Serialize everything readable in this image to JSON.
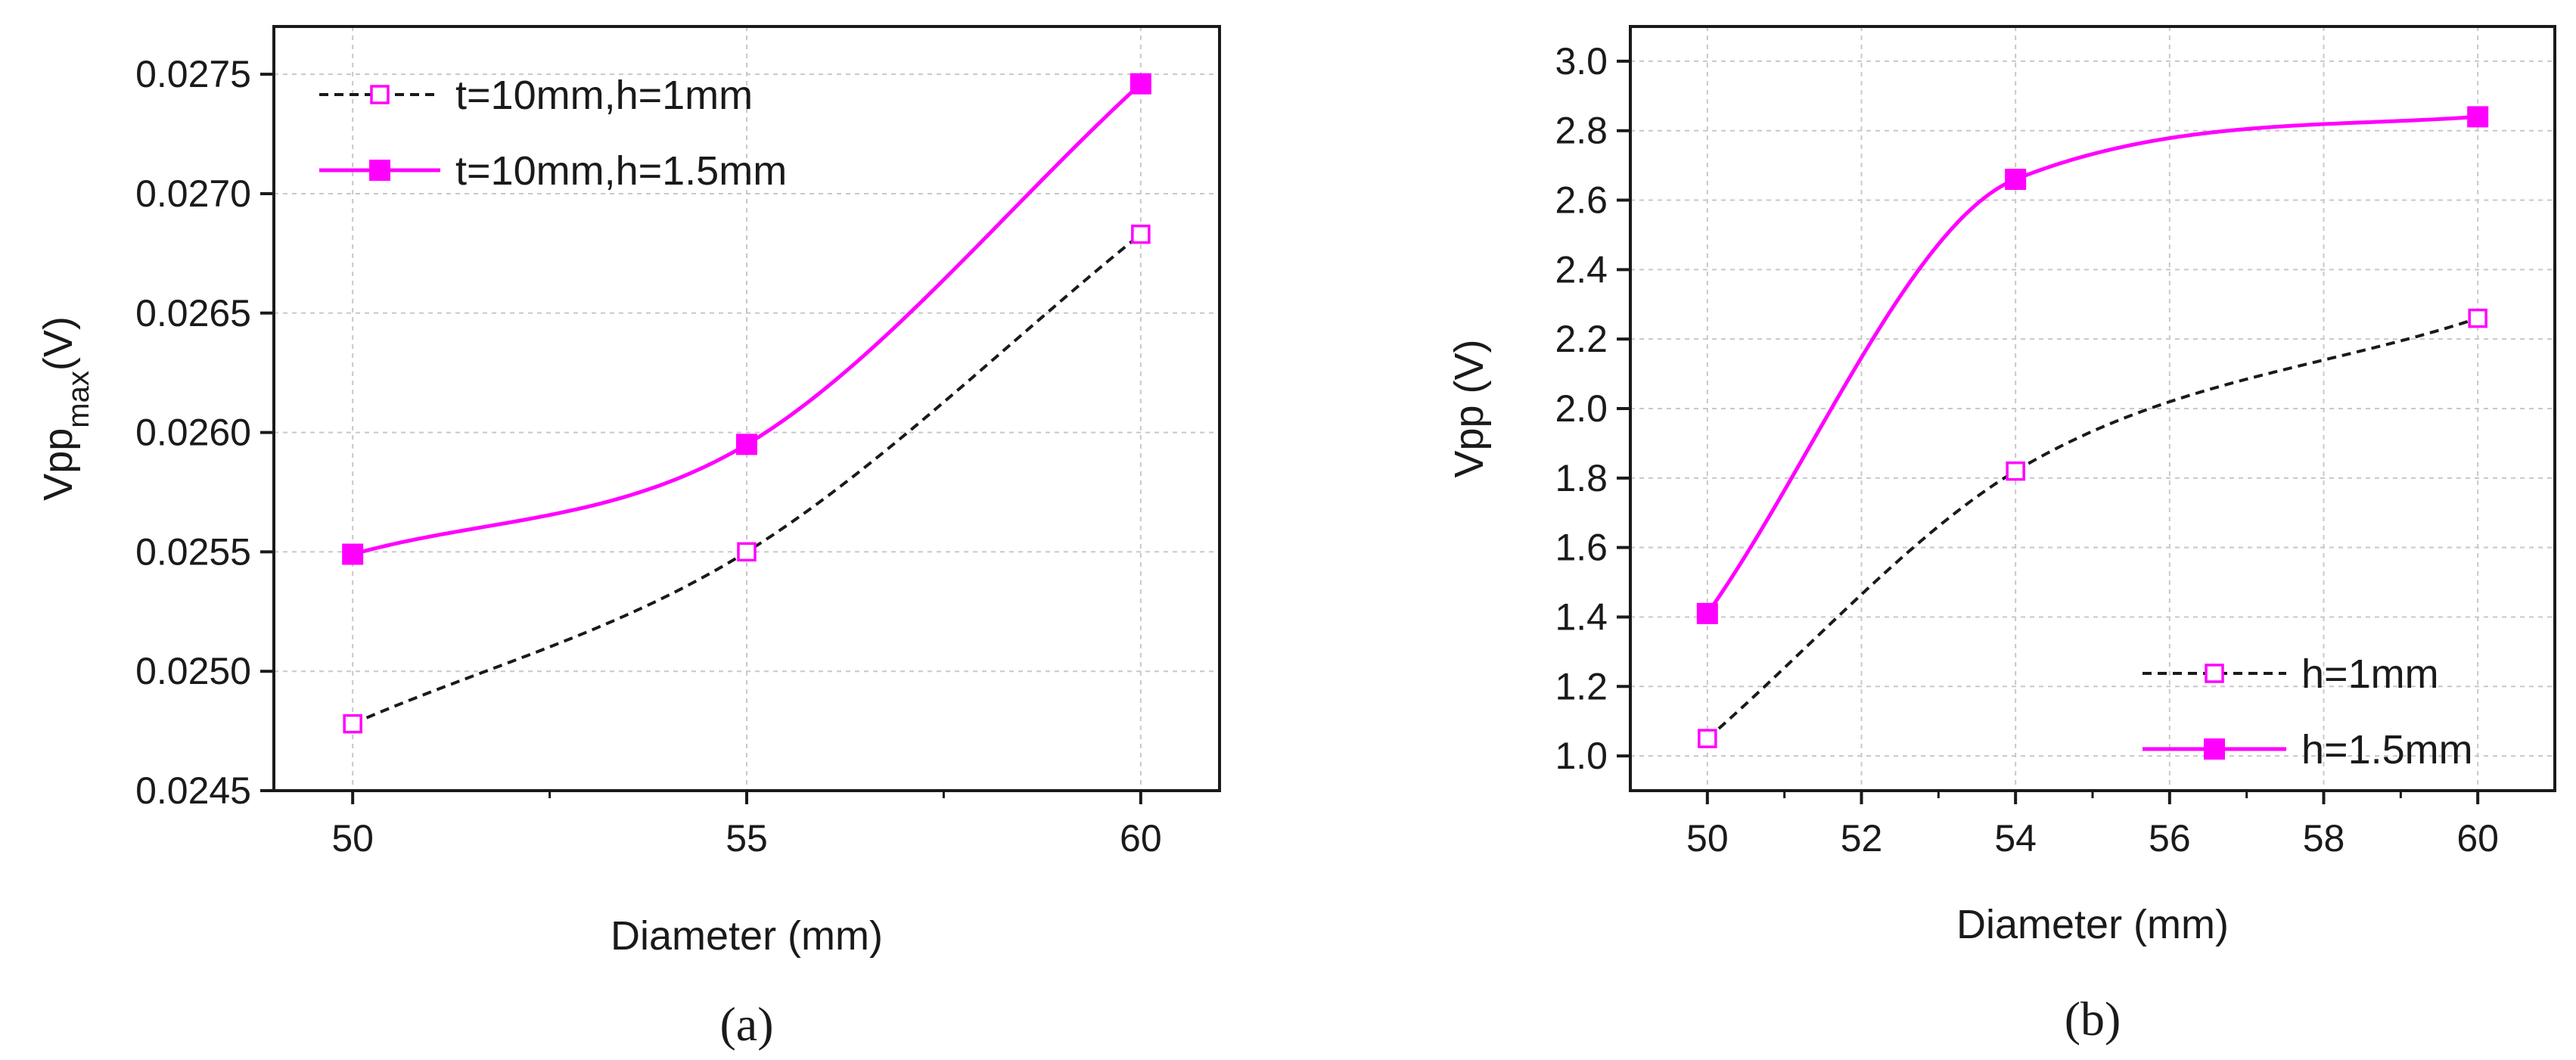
{
  "chart_data": [
    {
      "panel_label": "(a)",
      "type": "line",
      "xlabel": "Diameter (mm)",
      "ylabel_base": "Vpp",
      "ylabel_sub": "max",
      "ylabel_unit": "(V)",
      "xlim": [
        49,
        61
      ],
      "ylim": [
        0.0245,
        0.0277
      ],
      "xticks": [
        50,
        55,
        60
      ],
      "yticks": [
        0.0245,
        0.025,
        0.0255,
        0.026,
        0.0265,
        0.027,
        0.0275
      ],
      "ytick_labels": [
        "0.0245",
        "0.0250",
        "0.0255",
        "0.0260",
        "0.0265",
        "0.0270",
        "0.0275"
      ],
      "grid": true,
      "legend_position": "top-left",
      "series": [
        {
          "name": "t=10mm,h=1mm",
          "color": "#ff00ff",
          "line_style": "dashed-black",
          "marker": "open-square",
          "x": [
            50,
            55,
            60
          ],
          "y": [
            0.02478,
            0.0255,
            0.02683
          ]
        },
        {
          "name": "t=10mm,h=1.5mm",
          "color": "#ff00ff",
          "line_style": "solid",
          "marker": "filled-square",
          "x": [
            50,
            55,
            60
          ],
          "y": [
            0.02549,
            0.02595,
            0.02746
          ]
        }
      ]
    },
    {
      "panel_label": "(b)",
      "type": "line",
      "xlabel": "Diameter (mm)",
      "ylabel_base": "Vpp (V)",
      "ylabel_sub": "",
      "ylabel_unit": "",
      "xlim": [
        49,
        61
      ],
      "ylim": [
        0.9,
        3.1
      ],
      "xticks": [
        50,
        52,
        54,
        56,
        58,
        60
      ],
      "yticks": [
        1.0,
        1.2,
        1.4,
        1.6,
        1.8,
        2.0,
        2.2,
        2.4,
        2.6,
        2.8,
        3.0
      ],
      "ytick_labels": [
        "1.0",
        "1.2",
        "1.4",
        "1.6",
        "1.8",
        "2.0",
        "2.2",
        "2.4",
        "2.6",
        "2.8",
        "3.0"
      ],
      "grid": true,
      "legend_position": "bottom-right",
      "series": [
        {
          "name": "h=1mm",
          "color": "#ff00ff",
          "line_style": "dashed-black",
          "marker": "open-square",
          "x": [
            50,
            54,
            60
          ],
          "y": [
            1.05,
            1.82,
            2.26
          ]
        },
        {
          "name": "h=1.5mm",
          "color": "#ff00ff",
          "line_style": "solid",
          "marker": "filled-square",
          "x": [
            50,
            54,
            60
          ],
          "y": [
            1.41,
            2.66,
            2.84
          ]
        }
      ]
    }
  ]
}
